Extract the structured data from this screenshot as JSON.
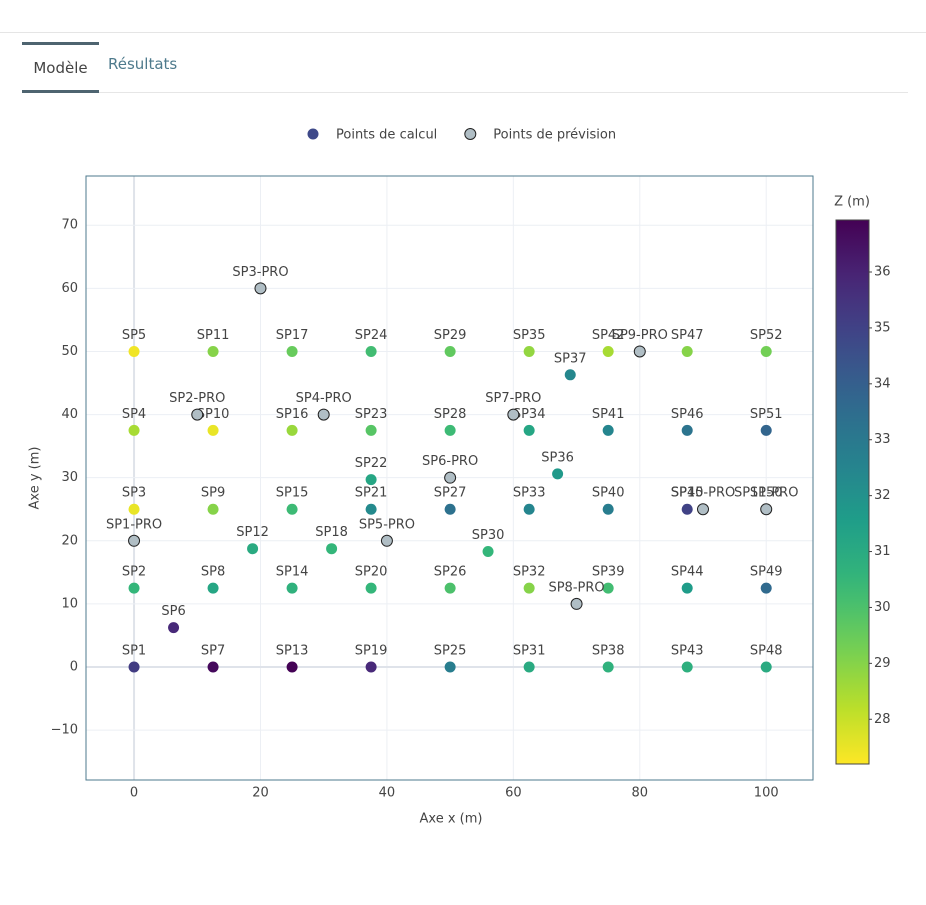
{
  "tabs": [
    "Modèle",
    "Résultats"
  ],
  "chart_data": {
    "type": "scatter",
    "x_label": "Axe x (m)",
    "y_label": "Axe y (m)",
    "xlim": [
      -7.6,
      107.4
    ],
    "xticks": [
      0,
      20,
      40,
      60,
      80,
      100
    ],
    "ylim": [
      -17.9,
      77.8
    ],
    "yticks": [
      {
        "value": -10,
        "label": "−10"
      },
      0,
      10,
      20,
      30,
      40,
      50,
      60,
      70
    ],
    "grid": true,
    "legend_position": "top",
    "colorscale": "viridis",
    "reversescale": true,
    "colorbar_title": "Z (m)",
    "clim": [
      27.2,
      36.93
    ],
    "cticks": [
      28,
      29,
      30,
      31,
      32,
      33,
      34,
      35,
      36
    ],
    "series": [
      {
        "name": "Points de calcul",
        "color": "#3e4989",
        "labels": [
          "SP1",
          "SP2",
          "SP3",
          "SP4",
          "SP5",
          "SP6",
          "SP7",
          "SP8",
          "SP9",
          "SP10",
          "SP11",
          "SP12",
          "SP13",
          "SP14",
          "SP15",
          "SP16",
          "SP17",
          "SP18",
          "SP19",
          "SP20",
          "SP21",
          "SP22",
          "SP23",
          "SP24",
          "SP25",
          "SP26",
          "SP27",
          "SP28",
          "SP29",
          "SP30",
          "SP31",
          "SP32",
          "SP33",
          "SP34",
          "SP35",
          "SP36",
          "SP37",
          "SP38",
          "SP39",
          "SP40",
          "SP41",
          "SP42",
          "SP43",
          "SP44",
          "SP45",
          "SP46",
          "SP47",
          "SP48",
          "SP49",
          "SP50",
          "SP51",
          "SP52"
        ],
        "x": [
          0,
          0,
          0,
          0,
          0,
          6.25,
          12.5,
          12.5,
          12.5,
          12.5,
          12.5,
          18.75,
          25,
          25,
          25,
          25,
          25,
          31.25,
          37.5,
          37.5,
          37.5,
          37.5,
          37.5,
          37.5,
          50,
          50,
          50,
          50,
          50,
          56,
          62.5,
          62.5,
          62.5,
          62.5,
          62.5,
          67,
          69,
          75,
          75,
          75,
          75,
          75,
          87.5,
          87.5,
          87.5,
          87.5,
          87.5,
          100,
          100,
          100,
          100,
          100
        ],
        "y": [
          0,
          12.5,
          25,
          37.5,
          50,
          6.25,
          0,
          12.5,
          25,
          37.5,
          50,
          18.75,
          0,
          12.5,
          25,
          37.5,
          50,
          18.75,
          0,
          12.5,
          25,
          29.7,
          37.5,
          50,
          0,
          12.5,
          25,
          37.5,
          50,
          18.3,
          0,
          12.5,
          25,
          37.5,
          50,
          30.6,
          46.3,
          0,
          12.5,
          25,
          37.5,
          50,
          0,
          12.5,
          25,
          37.5,
          50,
          0,
          12.5,
          25,
          37.5,
          50
        ],
        "z": [
          35.2,
          30.5,
          27.5,
          28.5,
          27.4,
          35.8,
          36.7,
          31.2,
          29,
          27.5,
          29,
          31,
          36.9,
          30.7,
          30.3,
          28.7,
          29.5,
          30.5,
          35.8,
          30.5,
          32.3,
          31.2,
          29.8,
          30.2,
          32.8,
          30,
          33.3,
          30.3,
          29.6,
          30.5,
          31,
          29,
          32.5,
          31.2,
          28.8,
          31.7,
          32.4,
          30.7,
          30.2,
          32.8,
          32.5,
          28.5,
          30.8,
          31.6,
          35,
          33.2,
          29,
          31,
          33.6,
          34,
          33.8,
          29.3
        ]
      },
      {
        "name": "Points de prévision",
        "color": "#b0bec5",
        "labels": [
          "SP1-PRO",
          "SP2-PRO",
          "SP3-PRO",
          "SP4-PRO",
          "SP5-PRO",
          "SP6-PRO",
          "SP7-PRO",
          "SP8-PRO",
          "SP9-PRO",
          "SP10-PRO",
          "SP11-PRO"
        ],
        "x": [
          0,
          10,
          20,
          30,
          40,
          50,
          60,
          70,
          80,
          90,
          100
        ],
        "y": [
          20,
          40,
          60,
          40,
          20,
          30,
          40,
          10,
          50,
          25,
          25
        ]
      }
    ]
  }
}
